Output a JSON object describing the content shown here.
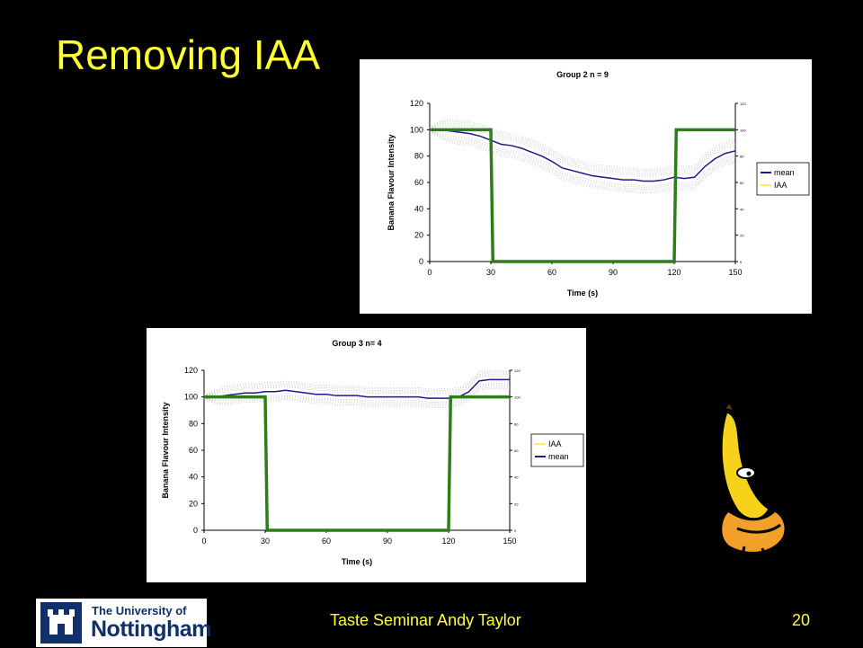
{
  "slide": {
    "title": "Removing IAA",
    "footer": "Taste Seminar Andy Taylor",
    "page_number": "20"
  },
  "logo": {
    "line1": "The University of",
    "line2": "Nottingham"
  },
  "mascot_icon": "banana-character-icon",
  "colors": {
    "background": "#000000",
    "title": "#ffff33",
    "mean": "#1a1a8c",
    "iaa": "#2e7d1a",
    "band": "#b0b0b0"
  },
  "chart_data": [
    {
      "type": "line",
      "title": "Group 2 n = 9",
      "xlabel": "Time (s)",
      "ylabel": "Banana Flavour Intensity",
      "xlim": [
        0,
        150
      ],
      "ylim": [
        0,
        120
      ],
      "xticks": [
        0,
        30,
        60,
        90,
        120,
        150
      ],
      "yticks": [
        0,
        20,
        40,
        60,
        80,
        100,
        120
      ],
      "y2ticks": [
        0,
        20,
        40,
        60,
        80,
        100,
        120
      ],
      "grid": false,
      "legend_position": "right",
      "legend": [
        "mean",
        "IAA"
      ],
      "series": [
        {
          "name": "mean",
          "x": [
            0,
            5,
            10,
            15,
            20,
            25,
            30,
            35,
            40,
            45,
            50,
            55,
            60,
            65,
            70,
            75,
            80,
            85,
            90,
            95,
            100,
            105,
            110,
            115,
            120,
            125,
            130,
            135,
            140,
            145,
            150
          ],
          "values": [
            100,
            100,
            99,
            98,
            97,
            95,
            92,
            89,
            88,
            86,
            83,
            80,
            76,
            71,
            69,
            67,
            65,
            64,
            63,
            62,
            62,
            61,
            61,
            62,
            64,
            63,
            64,
            72,
            78,
            82,
            84
          ],
          "band": 9
        },
        {
          "name": "IAA",
          "x": [
            0,
            30,
            31,
            120,
            121,
            150
          ],
          "values": [
            100,
            100,
            0,
            0,
            100,
            100
          ]
        }
      ]
    },
    {
      "type": "line",
      "title": "Group 3  n= 4",
      "xlabel": "Time (s)",
      "ylabel": "Banana Flavour Intensity",
      "xlim": [
        0,
        150
      ],
      "ylim": [
        0,
        120
      ],
      "xticks": [
        0,
        30,
        60,
        90,
        120,
        150
      ],
      "yticks": [
        0,
        20,
        40,
        60,
        80,
        100,
        120
      ],
      "y2ticks": [
        0,
        20,
        40,
        60,
        80,
        100,
        120
      ],
      "grid": false,
      "legend_position": "right",
      "legend": [
        "IAA",
        "mean"
      ],
      "series": [
        {
          "name": "mean",
          "x": [
            0,
            5,
            10,
            15,
            20,
            25,
            30,
            35,
            40,
            45,
            50,
            55,
            60,
            65,
            70,
            75,
            80,
            85,
            90,
            95,
            100,
            105,
            110,
            115,
            120,
            125,
            130,
            135,
            140,
            145,
            150
          ],
          "values": [
            100,
            100,
            101,
            102,
            103,
            103,
            104,
            104,
            105,
            104,
            103,
            102,
            102,
            101,
            101,
            101,
            100,
            100,
            100,
            100,
            100,
            100,
            99,
            99,
            99,
            100,
            104,
            112,
            113,
            113,
            113
          ],
          "band": 7
        },
        {
          "name": "IAA",
          "x": [
            0,
            30,
            31,
            120,
            121,
            150
          ],
          "values": [
            100,
            100,
            0,
            0,
            100,
            100
          ]
        }
      ]
    }
  ]
}
